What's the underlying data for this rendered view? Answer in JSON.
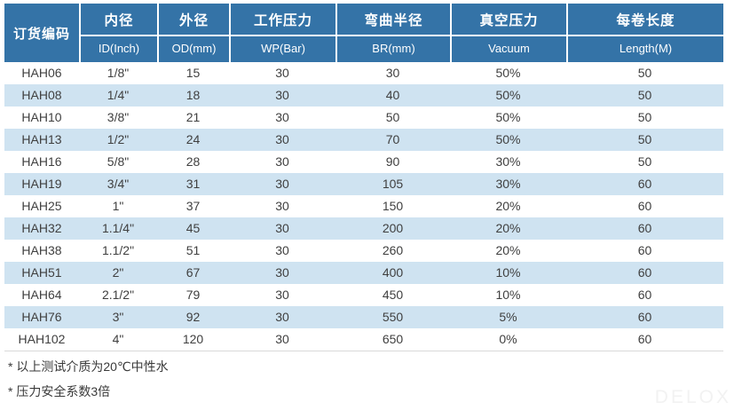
{
  "table": {
    "columns": [
      {
        "key": "code",
        "zh": "订货编码",
        "en": ""
      },
      {
        "key": "id",
        "zh": "内径",
        "en": "ID(Inch)"
      },
      {
        "key": "od",
        "zh": "外径",
        "en": "OD(mm)"
      },
      {
        "key": "wp",
        "zh": "工作压力",
        "en": "WP(Bar)"
      },
      {
        "key": "br",
        "zh": "弯曲半径",
        "en": "BR(mm)"
      },
      {
        "key": "vacuum",
        "zh": "真空压力",
        "en": "Vacuum"
      },
      {
        "key": "length",
        "zh": "每卷长度",
        "en": "Length(M)"
      }
    ],
    "rows": [
      [
        "HAH06",
        "1/8\"",
        "15",
        "30",
        "30",
        "50%",
        "50"
      ],
      [
        "HAH08",
        "1/4\"",
        "18",
        "30",
        "40",
        "50%",
        "50"
      ],
      [
        "HAH10",
        "3/8\"",
        "21",
        "30",
        "50",
        "50%",
        "50"
      ],
      [
        "HAH13",
        "1/2\"",
        "24",
        "30",
        "70",
        "50%",
        "50"
      ],
      [
        "HAH16",
        "5/8\"",
        "28",
        "30",
        "90",
        "30%",
        "50"
      ],
      [
        "HAH19",
        "3/4\"",
        "31",
        "30",
        "105",
        "30%",
        "60"
      ],
      [
        "HAH25",
        "1\"",
        "37",
        "30",
        "150",
        "20%",
        "60"
      ],
      [
        "HAH32",
        "1.1/4\"",
        "45",
        "30",
        "200",
        "20%",
        "60"
      ],
      [
        "HAH38",
        "1.1/2\"",
        "51",
        "30",
        "260",
        "20%",
        "60"
      ],
      [
        "HAH51",
        "2\"",
        "67",
        "30",
        "400",
        "10%",
        "60"
      ],
      [
        "HAH64",
        "2.1/2\"",
        "79",
        "30",
        "450",
        "10%",
        "60"
      ],
      [
        "HAH76",
        "3\"",
        "92",
        "30",
        "550",
        "5%",
        "60"
      ],
      [
        "HAH102",
        "4\"",
        "120",
        "30",
        "650",
        "0%",
        "60"
      ]
    ]
  },
  "notes": [
    "* 以上测试介质为20℃中性水",
    "* 压力安全系数3倍"
  ],
  "watermark": "DELOX",
  "colors": {
    "header_bg": "#3473a7",
    "stripe": "#cfe3f1",
    "data_text": "#3f3f3f"
  }
}
